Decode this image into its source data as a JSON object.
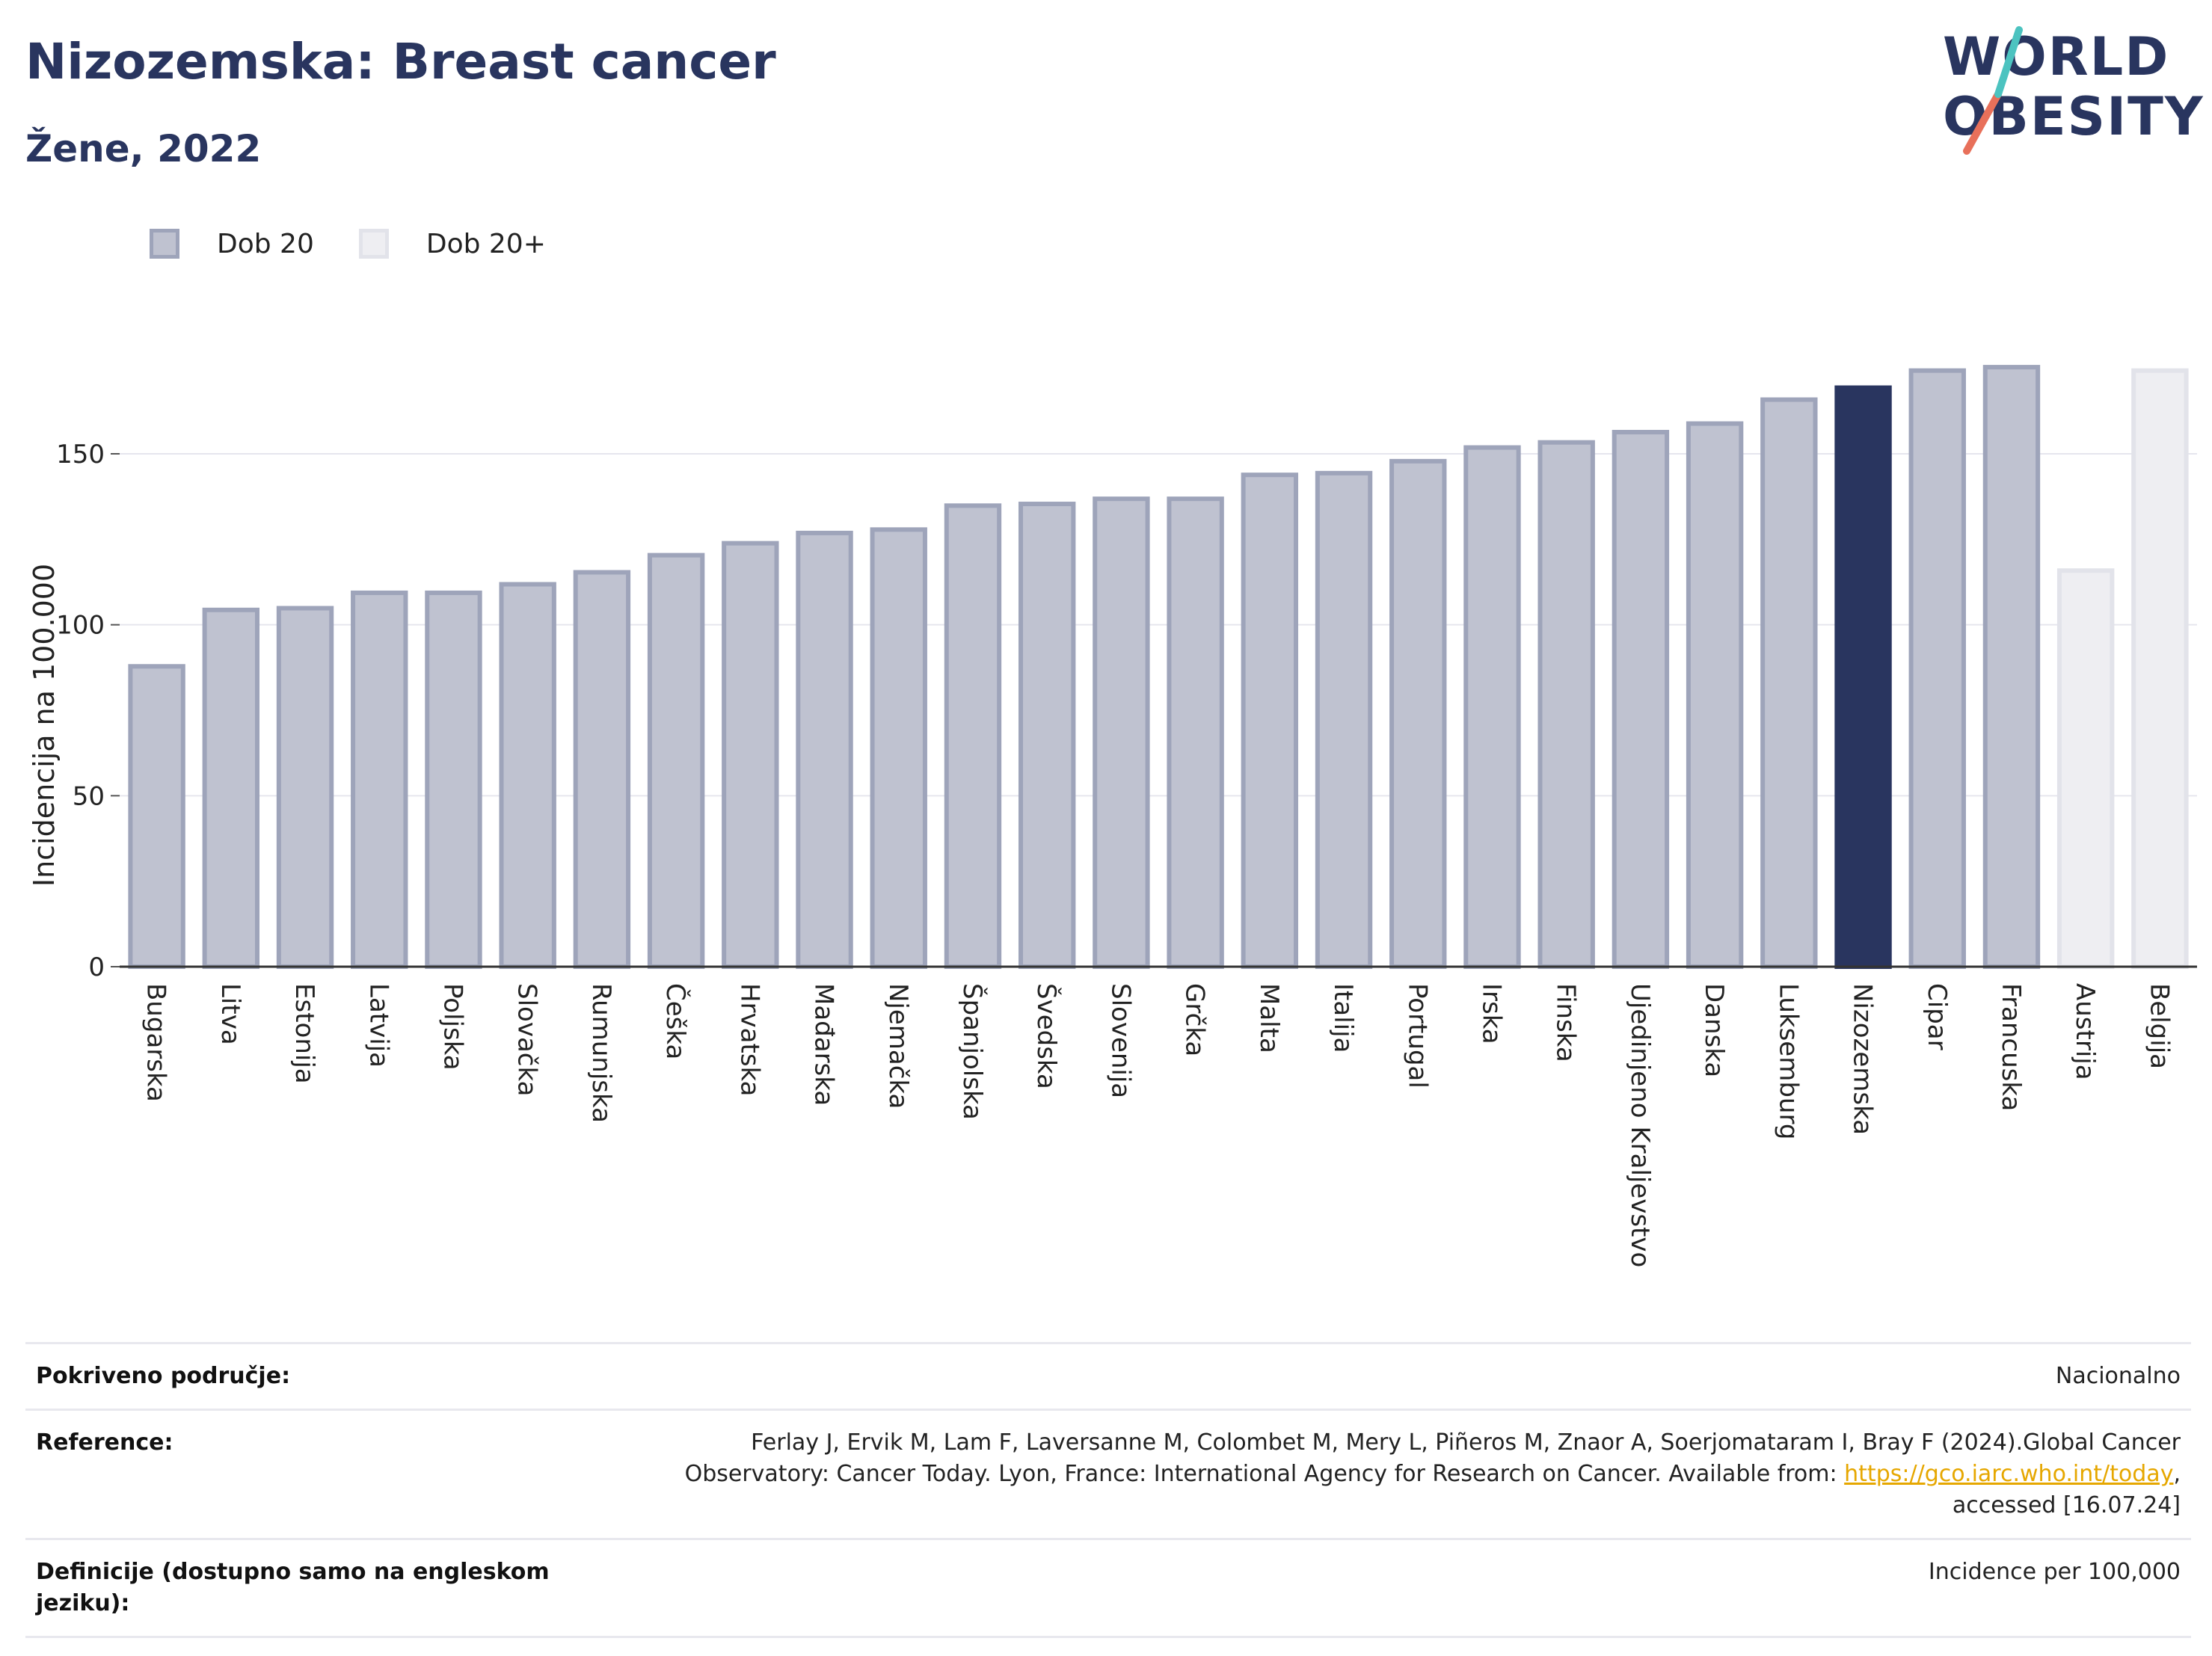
{
  "header": {
    "title": "Nizozemska: Breast cancer",
    "subtitle": "Žene, 2022"
  },
  "logo": {
    "line1": "WORLD",
    "line2": "OBESITY"
  },
  "legend": {
    "items": [
      {
        "label": "Dob 20",
        "fill": "#bfc2d0",
        "border": "#9ea4ba"
      },
      {
        "label": "Dob 20+",
        "fill": "#eeeef2",
        "border": "#e2e3ea"
      }
    ]
  },
  "colors": {
    "highlight": "#29355f",
    "axis": "#333333",
    "grid": "#e6e6ee"
  },
  "chart_data": {
    "type": "bar",
    "ylabel": "Incidencija na 100.000",
    "ylim": [
      0,
      180
    ],
    "yticks": [
      0,
      50,
      100,
      150
    ],
    "grid": true,
    "legend_position": "top-left",
    "highlight": "Nizozemska",
    "categories": [
      "Bugarska",
      "Litva",
      "Estonija",
      "Latvija",
      "Poljska",
      "Slovačka",
      "Rumunjska",
      "Češka",
      "Hrvatska",
      "Mađarska",
      "Njemačka",
      "Španjolska",
      "Švedska",
      "Slovenija",
      "Grčka",
      "Malta",
      "Italija",
      "Portugal",
      "Irska",
      "Finska",
      "Ujedinjeno Kraljevstvo",
      "Danska",
      "Luksemburg",
      "Nizozemska",
      "Cipar",
      "Francuska",
      "Austrija",
      "Belgija"
    ],
    "values": [
      88.5,
      105,
      105.5,
      110,
      110,
      112.5,
      116,
      121,
      124.5,
      127.5,
      128.5,
      135.5,
      136,
      137.5,
      137.5,
      144.5,
      145,
      148.5,
      152.5,
      154,
      157,
      159.5,
      166.5,
      170,
      175,
      176,
      116.5,
      175
    ],
    "series_membership": [
      "Dob 20",
      "Dob 20",
      "Dob 20",
      "Dob 20",
      "Dob 20",
      "Dob 20",
      "Dob 20",
      "Dob 20",
      "Dob 20",
      "Dob 20",
      "Dob 20",
      "Dob 20",
      "Dob 20",
      "Dob 20",
      "Dob 20",
      "Dob 20",
      "Dob 20",
      "Dob 20",
      "Dob 20",
      "Dob 20",
      "Dob 20",
      "Dob 20",
      "Dob 20",
      "Dob 20",
      "Dob 20",
      "Dob 20",
      "Dob 20+",
      "Dob 20+"
    ]
  },
  "info": {
    "coverage_label": "Pokriveno područje:",
    "coverage_value": "Nacionalno",
    "reference_label": "Reference:",
    "reference_text": "Ferlay J, Ervik M, Lam F, Laversanne M, Colombet M, Mery L, Piñeros M, Znaor A, Soerjomataram I, Bray F (2024).Global Cancer Observatory: Cancer Today. Lyon, France: International Agency for Research on Cancer. Available from:",
    "reference_link": "https://gco.iarc.who.int/today",
    "reference_suffix": ", accessed [16.07.24]",
    "definition_label": "Definicije (dostupno samo na engleskom jeziku):",
    "definition_value": "Incidence per 100,000"
  }
}
